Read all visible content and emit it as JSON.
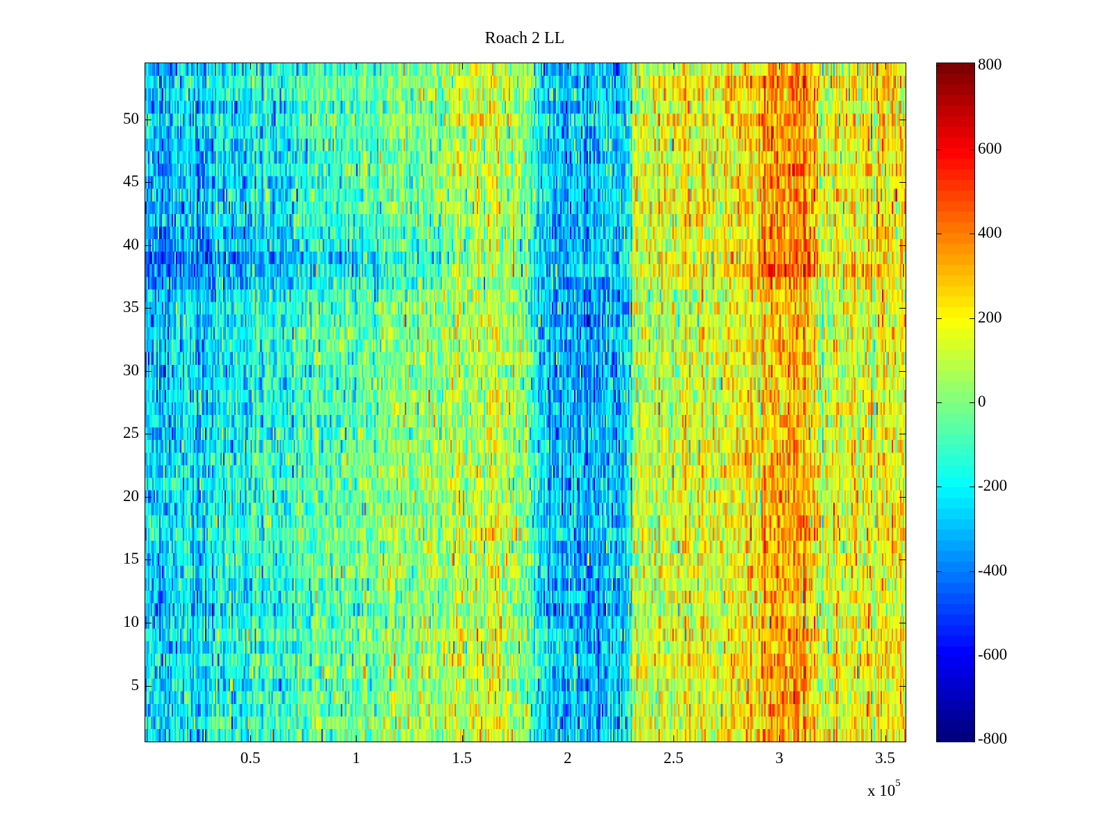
{
  "chart_data": {
    "type": "heatmap",
    "title": "Roach 2 LL",
    "xlabel": "",
    "ylabel": "",
    "x_multiplier_label": "x 10",
    "x_multiplier_exponent": "5",
    "xlim": [
      0,
      360000
    ],
    "ylim": [
      0.5,
      54.5
    ],
    "rows": 54,
    "x_ticks": [
      50000,
      100000,
      150000,
      200000,
      250000,
      300000,
      350000
    ],
    "x_tick_labels": [
      "0.5",
      "1",
      "1.5",
      "2",
      "2.5",
      "3",
      "3.5"
    ],
    "y_ticks": [
      5,
      10,
      15,
      20,
      25,
      30,
      35,
      40,
      45,
      50
    ],
    "y_tick_labels": [
      "5",
      "10",
      "15",
      "20",
      "25",
      "30",
      "35",
      "40",
      "45",
      "50"
    ],
    "colormap": "jet",
    "clim": [
      -806,
      806
    ],
    "colorbar_ticks": [
      800,
      600,
      400,
      200,
      0,
      -200,
      -400,
      -600,
      -800
    ],
    "colorbar_tick_labels": [
      "800",
      "600",
      "400",
      "200",
      "0",
      "-200",
      "-400",
      "-600",
      "-800"
    ],
    "column_mean_profile": {
      "x": [
        0,
        30000,
        60000,
        100000,
        130000,
        160000,
        175000,
        190000,
        200000,
        228000,
        232000,
        260000,
        290000,
        300000,
        315000,
        320000,
        360000
      ],
      "value": [
        -260,
        -200,
        -130,
        -40,
        40,
        130,
        80,
        -250,
        -300,
        -280,
        120,
        140,
        220,
        330,
        320,
        160,
        200
      ]
    },
    "row_offsets": {
      "rows": [
        37,
        38,
        39,
        40,
        41,
        42,
        43,
        44,
        45,
        46,
        47,
        48,
        49,
        50,
        51,
        52,
        53,
        54
      ],
      "left_offset": [
        -80,
        -170,
        -170,
        -120,
        -80,
        -60,
        -60,
        -60,
        -60,
        -60,
        -60,
        -60,
        -40,
        -40,
        -40,
        -40,
        -40,
        -40
      ]
    },
    "noise_std": 130,
    "grid": false
  }
}
